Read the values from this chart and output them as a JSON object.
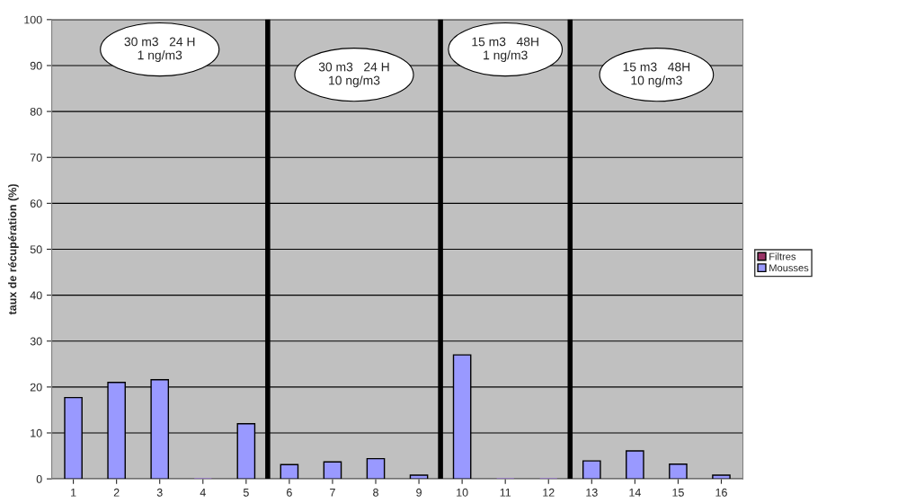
{
  "chart_data": {
    "type": "bar",
    "ylabel": "taux de récupération (%)",
    "x": [
      1,
      2,
      3,
      4,
      5,
      6,
      7,
      8,
      9,
      10,
      11,
      12,
      13,
      14,
      15,
      16
    ],
    "series": [
      {
        "name": "Filtres",
        "color": "#993366",
        "values": [
          0,
          0,
          0,
          0,
          0,
          0,
          0,
          0,
          0,
          0,
          0,
          0,
          0,
          0,
          0,
          0
        ]
      },
      {
        "name": "Mousses",
        "color": "#9999ff",
        "values": [
          17.7,
          21,
          21.6,
          0,
          12,
          3.1,
          3.7,
          4.4,
          0.8,
          27,
          0,
          0,
          3.9,
          6.1,
          3.2,
          0.8
        ]
      }
    ],
    "xlim": [
      0.5,
      16.5
    ],
    "xticks": [
      1,
      2,
      3,
      4,
      5,
      6,
      7,
      8,
      9,
      10,
      11,
      12,
      13,
      14,
      15,
      16
    ],
    "ylim": [
      0,
      100
    ],
    "yticks": [
      0,
      10,
      20,
      30,
      40,
      50,
      60,
      70,
      80,
      90,
      100
    ],
    "grid": "y",
    "legend": "right",
    "annotations": [
      "30 m3   24 H\n1 ng/m3",
      "30 m3   24 H\n10 ng/m3",
      "15 m3   48H\n1 ng/m3",
      "15 m3   48H\n10 ng/m3"
    ],
    "ref_lines": [
      {
        "axis": "x",
        "value": 5.5,
        "color": "#000000"
      },
      {
        "axis": "x",
        "value": 9.5,
        "color": "#000000"
      },
      {
        "axis": "x",
        "value": 12.5,
        "color": "#000000"
      }
    ]
  }
}
